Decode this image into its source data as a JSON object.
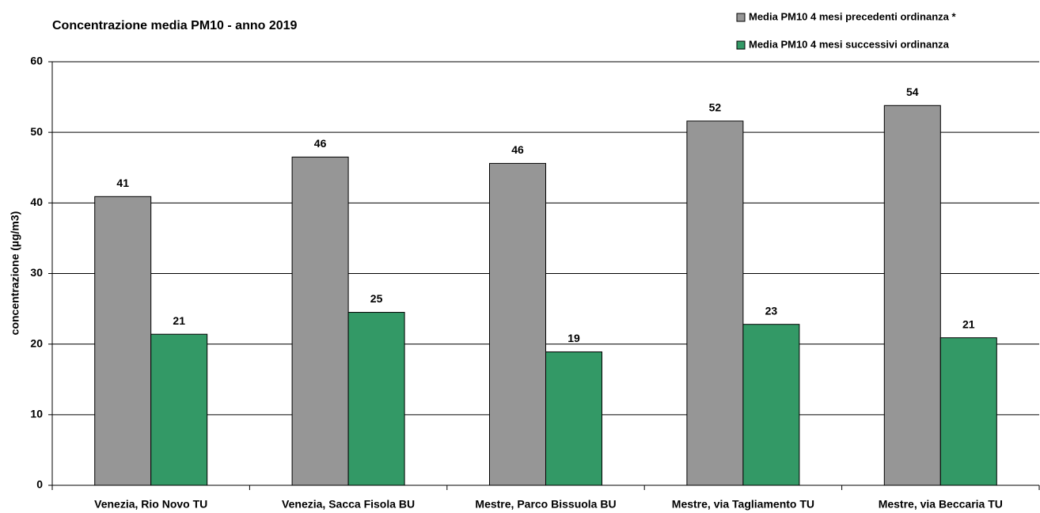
{
  "chart_data": {
    "type": "bar",
    "title": "Concentrazione media PM10 - anno 2019",
    "y_label": "concentrazione (µg/m3)",
    "categories": [
      "Venezia, Rio Novo TU",
      "Venezia, Sacca Fisola  BU",
      "Mestre, Parco Bissuola BU",
      "Mestre, via Tagliamento TU",
      "Mestre, via Beccaria TU"
    ],
    "series": [
      {
        "name": "Media PM10 4 mesi precedenti ordinanza *",
        "color": "#969696",
        "values": [
          40.9,
          46.5,
          45.6,
          51.6,
          53.8
        ],
        "value_labels": [
          "41",
          "46",
          "46",
          "52",
          "54"
        ]
      },
      {
        "name": "Media PM10 4 mesi successivi ordinanza",
        "color": "#339966",
        "values": [
          21.4,
          24.5,
          18.9,
          22.8,
          20.9
        ],
        "value_labels": [
          "21",
          "25",
          "19",
          "23",
          "21"
        ]
      }
    ],
    "ylim": [
      0,
      60
    ],
    "yticks": [
      0,
      10,
      20,
      30,
      40,
      50,
      60
    ],
    "grid": true,
    "legend": "top-right"
  }
}
